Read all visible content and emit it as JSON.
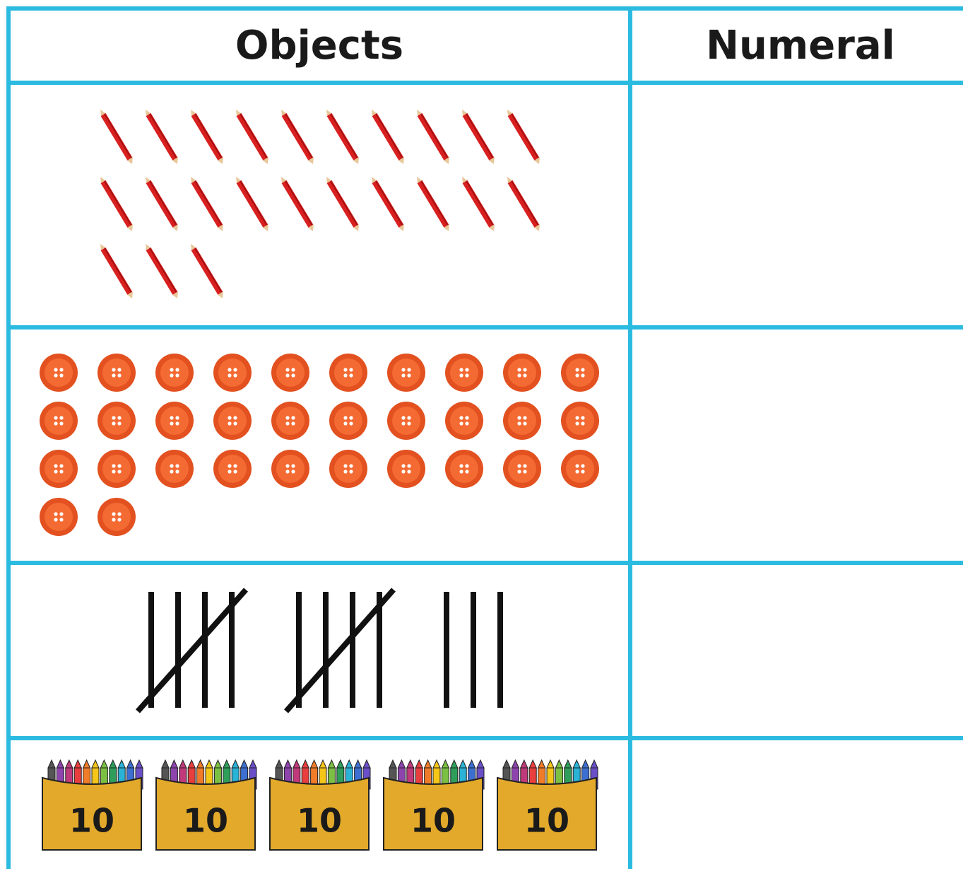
{
  "table": {
    "header": [
      "Objects",
      "Numeral"
    ],
    "crayon_box_labels": [
      "10",
      "10",
      "10",
      "10",
      "10"
    ]
  }
}
